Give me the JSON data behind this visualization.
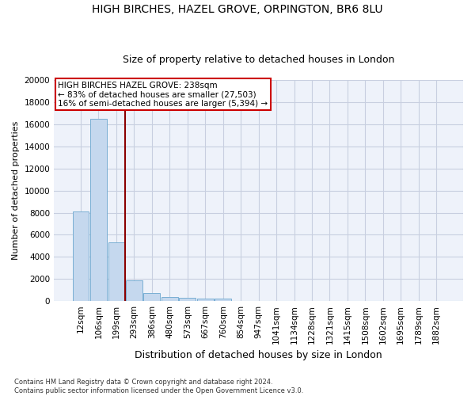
{
  "title1": "HIGH BIRCHES, HAZEL GROVE, ORPINGTON, BR6 8LU",
  "title2": "Size of property relative to detached houses in London",
  "xlabel": "Distribution of detached houses by size in London",
  "ylabel": "Number of detached properties",
  "bar_labels": [
    "12sqm",
    "106sqm",
    "199sqm",
    "293sqm",
    "386sqm",
    "480sqm",
    "573sqm",
    "667sqm",
    "760sqm",
    "854sqm",
    "947sqm",
    "1041sqm",
    "1134sqm",
    "1228sqm",
    "1321sqm",
    "1415sqm",
    "1508sqm",
    "1602sqm",
    "1695sqm",
    "1789sqm",
    "1882sqm"
  ],
  "bar_values": [
    8100,
    16500,
    5300,
    1850,
    700,
    380,
    280,
    230,
    200,
    0,
    0,
    0,
    0,
    0,
    0,
    0,
    0,
    0,
    0,
    0,
    0
  ],
  "bar_color": "#c5d8ee",
  "bar_edge_color": "#7aafd4",
  "annotation_box_text": "HIGH BIRCHES HAZEL GROVE: 238sqm\n← 83% of detached houses are smaller (27,503)\n16% of semi-detached houses are larger (5,394) →",
  "vline_x_index": 2.5,
  "vline_color": "#8b0000",
  "annotation_box_color": "#cc0000",
  "footnote": "Contains HM Land Registry data © Crown copyright and database right 2024.\nContains public sector information licensed under the Open Government Licence v3.0.",
  "ylim": [
    0,
    20000
  ],
  "yticks": [
    0,
    2000,
    4000,
    6000,
    8000,
    10000,
    12000,
    14000,
    16000,
    18000,
    20000
  ],
  "grid_color": "#c8cfe0",
  "bg_color": "#eef2fa",
  "title1_fontsize": 10,
  "title2_fontsize": 9,
  "ylabel_fontsize": 8,
  "xlabel_fontsize": 9,
  "tick_fontsize": 7.5,
  "ann_fontsize": 7.5
}
